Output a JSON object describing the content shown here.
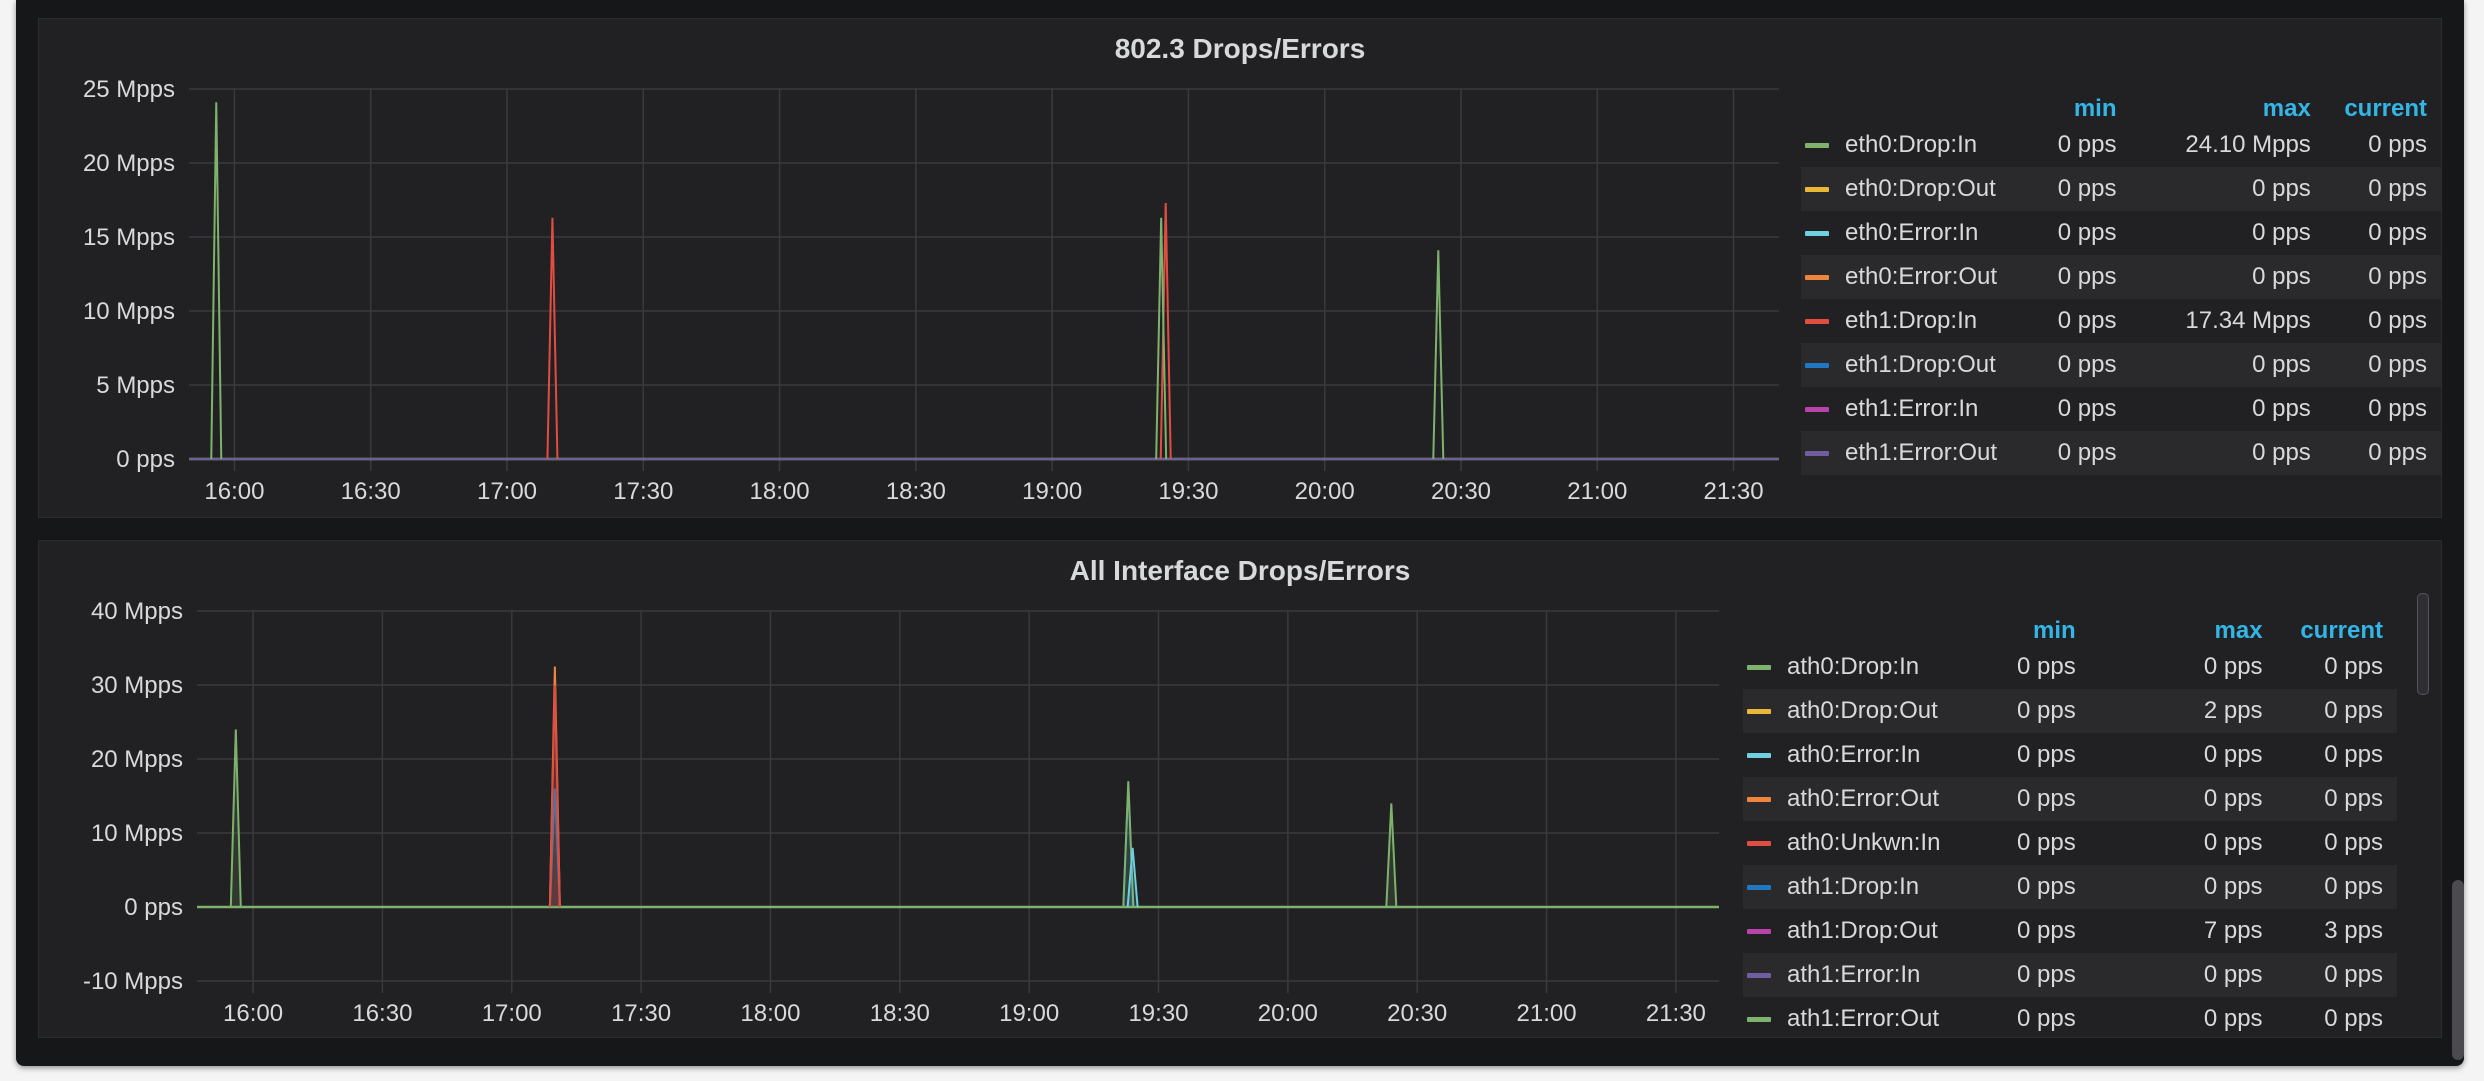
{
  "colors": [
    "#7eb26d",
    "#eab839",
    "#6ed0e0",
    "#ef843c",
    "#e24d42",
    "#1f78c1",
    "#ba43a9",
    "#705da0"
  ],
  "legend_headers": {
    "min": "min",
    "max": "max",
    "current": "current"
  },
  "chart_data": [
    {
      "type": "line",
      "title": "802.3 Drops/Errors",
      "x_ticks": [
        "16:00",
        "16:30",
        "17:00",
        "17:30",
        "18:00",
        "18:30",
        "19:00",
        "19:30",
        "20:00",
        "20:30",
        "21:00",
        "21:30"
      ],
      "y_ticks": [
        "25 Mpps",
        "20 Mpps",
        "15 Mpps",
        "10 Mpps",
        "5 Mpps",
        "0 pps"
      ],
      "ylim": [
        0,
        25
      ],
      "xlim": [
        "15:50",
        "21:40"
      ],
      "grid": true,
      "legend_position": "right",
      "series": [
        {
          "name": "eth0:Drop:In",
          "min": "0 pps",
          "max": "24.10 Mpps",
          "current": "0 pps",
          "spikes": [
            [
              "15:56",
              24.1
            ]
          ]
        },
        {
          "name": "eth0:Drop:Out",
          "min": "0 pps",
          "max": "0 pps",
          "current": "0 pps",
          "spikes": []
        },
        {
          "name": "eth0:Error:In",
          "min": "0 pps",
          "max": "0 pps",
          "current": "0 pps",
          "spikes": []
        },
        {
          "name": "eth0:Error:Out",
          "min": "0 pps",
          "max": "0 pps",
          "current": "0 pps",
          "spikes": []
        },
        {
          "name": "eth1:Drop:In",
          "min": "0 pps",
          "max": "17.34 Mpps",
          "current": "0 pps",
          "spikes": [
            [
              "17:10",
              16.3
            ],
            [
              "19:25",
              17.3
            ]
          ]
        },
        {
          "name": "eth1:Drop:Out",
          "min": "0 pps",
          "max": "0 pps",
          "current": "0 pps",
          "spikes": []
        },
        {
          "name": "eth1:Error:In",
          "min": "0 pps",
          "max": "0 pps",
          "current": "0 pps",
          "spikes": []
        },
        {
          "name": "eth1:Error:Out",
          "min": "0 pps",
          "max": "0 pps",
          "current": "0 pps",
          "spikes": []
        }
      ],
      "extra_spikes": [
        {
          "series": 0,
          "points": [
            [
              "19:24",
              16.3
            ],
            [
              "20:25",
              14.1
            ]
          ]
        }
      ]
    },
    {
      "type": "line",
      "title": "All Interface Drops/Errors",
      "x_ticks": [
        "16:00",
        "16:30",
        "17:00",
        "17:30",
        "18:00",
        "18:30",
        "19:00",
        "19:30",
        "20:00",
        "20:30",
        "21:00",
        "21:30"
      ],
      "y_ticks": [
        "40 Mpps",
        "30 Mpps",
        "20 Mpps",
        "10 Mpps",
        "0 pps",
        "-10 Mpps"
      ],
      "ylim": [
        -10,
        40
      ],
      "xlim": [
        "15:47",
        "21:40"
      ],
      "grid": true,
      "legend_position": "right",
      "series": [
        {
          "name": "ath0:Drop:In",
          "min": "0 pps",
          "max": "0 pps",
          "current": "0 pps"
        },
        {
          "name": "ath0:Drop:Out",
          "min": "0 pps",
          "max": "2 pps",
          "current": "0 pps"
        },
        {
          "name": "ath0:Error:In",
          "min": "0 pps",
          "max": "0 pps",
          "current": "0 pps"
        },
        {
          "name": "ath0:Error:Out",
          "min": "0 pps",
          "max": "0 pps",
          "current": "0 pps"
        },
        {
          "name": "ath0:Unkwn:In",
          "min": "0 pps",
          "max": "0 pps",
          "current": "0 pps"
        },
        {
          "name": "ath1:Drop:In",
          "min": "0 pps",
          "max": "0 pps",
          "current": "0 pps"
        },
        {
          "name": "ath1:Drop:Out",
          "min": "0 pps",
          "max": "7 pps",
          "current": "3 pps"
        },
        {
          "name": "ath1:Error:In",
          "min": "0 pps",
          "max": "0 pps",
          "current": "0 pps"
        },
        {
          "name": "ath1:Error:Out",
          "min": "0 pps",
          "max": "0 pps",
          "current": "0 pps"
        }
      ],
      "spikes": [
        {
          "color": "#7eb26d",
          "t": "15:56",
          "v": 24
        },
        {
          "color": "#1f78c1",
          "t": "17:10",
          "v": 16
        },
        {
          "color": "#ef843c",
          "t": "17:10",
          "v": 32.5
        },
        {
          "color": "#e24d42",
          "t": "17:10",
          "v": 30
        },
        {
          "color": "#1f78c1",
          "t": "19:23",
          "v": 16.5
        },
        {
          "color": "#7eb26d",
          "t": "19:23",
          "v": 17
        },
        {
          "color": "#6ed0e0",
          "t": "19:24",
          "v": 8
        },
        {
          "color": "#7eb26d",
          "t": "20:24",
          "v": 14
        }
      ]
    }
  ]
}
